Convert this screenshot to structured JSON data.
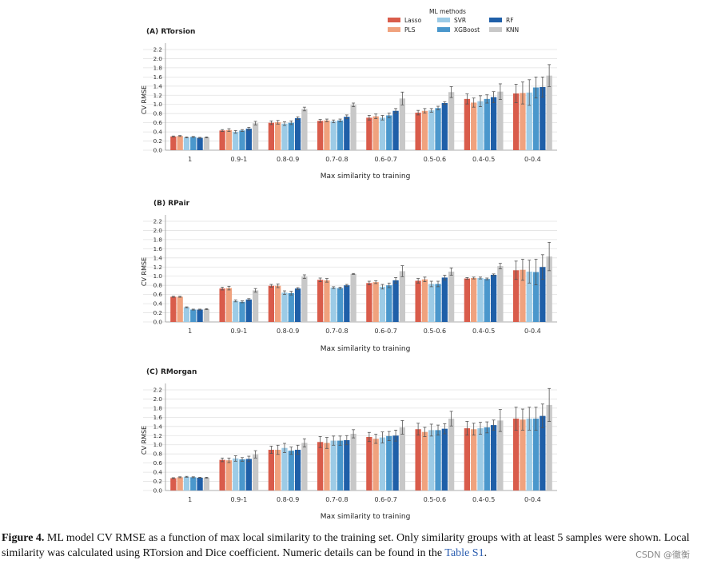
{
  "legend": {
    "title": "ML methods",
    "entries": [
      {
        "name": "Lasso",
        "color": "#d95c4b"
      },
      {
        "name": "PLS",
        "color": "#f0a27e"
      },
      {
        "name": "SVR",
        "color": "#9ccbe6"
      },
      {
        "name": "XGBoost",
        "color": "#4a97cc"
      },
      {
        "name": "RF",
        "color": "#1f5fa8"
      },
      {
        "name": "KNN",
        "color": "#c8c8c8"
      }
    ]
  },
  "chart_data": [
    {
      "type": "bar",
      "title": "(A) RTorsion",
      "xlabel": "Max similarity to training",
      "ylabel": "CV RMSE",
      "ylim": [
        0,
        2.2
      ],
      "yticks": [
        "0.0",
        "0.2",
        "0.4",
        "0.6",
        "0.8",
        "1.0",
        "1.2",
        "1.4",
        "1.6",
        "1.8",
        "2.0",
        "2.2"
      ],
      "categories": [
        "1",
        "0.9-1",
        "0.8-0.9",
        "0.7-0.8",
        "0.6-0.7",
        "0.5-0.6",
        "0.4-0.5",
        "0-0.4"
      ],
      "series": [
        {
          "name": "Lasso",
          "values": [
            0.3,
            0.43,
            0.6,
            0.64,
            0.71,
            0.82,
            1.12,
            1.24
          ],
          "errors": [
            0.01,
            0.02,
            0.04,
            0.03,
            0.05,
            0.05,
            0.11,
            0.2
          ]
        },
        {
          "name": "PLS",
          "values": [
            0.31,
            0.44,
            0.61,
            0.65,
            0.74,
            0.86,
            1.04,
            1.25
          ],
          "errors": [
            0.01,
            0.03,
            0.04,
            0.03,
            0.05,
            0.05,
            0.1,
            0.24
          ]
        },
        {
          "name": "SVR",
          "values": [
            0.28,
            0.4,
            0.58,
            0.63,
            0.71,
            0.87,
            1.07,
            1.26
          ],
          "errors": [
            0.01,
            0.03,
            0.04,
            0.03,
            0.05,
            0.04,
            0.12,
            0.28
          ]
        },
        {
          "name": "XGBoost",
          "values": [
            0.29,
            0.43,
            0.6,
            0.65,
            0.76,
            0.92,
            1.12,
            1.37
          ],
          "errors": [
            0.01,
            0.02,
            0.04,
            0.03,
            0.05,
            0.04,
            0.09,
            0.23
          ]
        },
        {
          "name": "RF",
          "values": [
            0.27,
            0.47,
            0.7,
            0.73,
            0.86,
            1.03,
            1.16,
            1.38
          ],
          "errors": [
            0.01,
            0.03,
            0.03,
            0.04,
            0.05,
            0.03,
            0.12,
            0.22
          ]
        },
        {
          "name": "KNN",
          "values": [
            0.28,
            0.59,
            0.9,
            0.99,
            1.13,
            1.27,
            1.28,
            1.63
          ],
          "errors": [
            0.01,
            0.04,
            0.04,
            0.04,
            0.14,
            0.12,
            0.17,
            0.24
          ]
        }
      ]
    },
    {
      "type": "bar",
      "title": "(B) RPair",
      "xlabel": "Max similarity to training",
      "ylabel": "CV RMSE",
      "ylim": [
        0,
        2.2
      ],
      "yticks": [
        "0.0",
        "0.2",
        "0.4",
        "0.6",
        "0.8",
        "1.0",
        "1.2",
        "1.4",
        "1.6",
        "1.8",
        "2.0",
        "2.2"
      ],
      "categories": [
        "1",
        "0.9-1",
        "0.8-0.9",
        "0.7-0.8",
        "0.6-0.7",
        "0.5-0.6",
        "0.4-0.5",
        "0-0.4"
      ],
      "series": [
        {
          "name": "Lasso",
          "values": [
            0.55,
            0.73,
            0.79,
            0.92,
            0.85,
            0.9,
            0.95,
            1.13
          ],
          "errors": [
            0.01,
            0.03,
            0.03,
            0.04,
            0.04,
            0.05,
            0.02,
            0.2
          ]
        },
        {
          "name": "PLS",
          "values": [
            0.55,
            0.74,
            0.79,
            0.91,
            0.87,
            0.93,
            0.96,
            1.14
          ],
          "errors": [
            0.01,
            0.04,
            0.04,
            0.04,
            0.03,
            0.05,
            0.02,
            0.23
          ]
        },
        {
          "name": "SVR",
          "values": [
            0.32,
            0.46,
            0.64,
            0.75,
            0.77,
            0.83,
            0.96,
            1.1
          ],
          "errors": [
            0.01,
            0.02,
            0.04,
            0.02,
            0.05,
            0.06,
            0.02,
            0.25
          ]
        },
        {
          "name": "XGBoost",
          "values": [
            0.27,
            0.44,
            0.63,
            0.74,
            0.8,
            0.83,
            0.94,
            1.09
          ],
          "errors": [
            0.01,
            0.02,
            0.04,
            0.02,
            0.05,
            0.06,
            0.02,
            0.28
          ]
        },
        {
          "name": "RF",
          "values": [
            0.27,
            0.49,
            0.73,
            0.8,
            0.91,
            0.97,
            1.03,
            1.2
          ],
          "errors": [
            0.01,
            0.02,
            0.02,
            0.02,
            0.06,
            0.05,
            0.02,
            0.27
          ]
        },
        {
          "name": "KNN",
          "values": [
            0.28,
            0.69,
            0.99,
            1.05,
            1.11,
            1.1,
            1.22,
            1.43
          ],
          "errors": [
            0.01,
            0.04,
            0.04,
            0.01,
            0.12,
            0.08,
            0.06,
            0.31
          ]
        }
      ]
    },
    {
      "type": "bar",
      "title": "(C) RMorgan",
      "xlabel": "Max similarity to training",
      "ylabel": "CV RMSE",
      "ylim": [
        0,
        2.2
      ],
      "yticks": [
        "0.0",
        "0.2",
        "0.4",
        "0.6",
        "0.8",
        "1.0",
        "1.2",
        "1.4",
        "1.6",
        "1.8",
        "2.0",
        "2.2"
      ],
      "categories": [
        "1",
        "0.9-1",
        "0.8-0.9",
        "0.7-0.8",
        "0.6-0.7",
        "0.5-0.6",
        "0.4-0.5",
        "0-0.4"
      ],
      "series": [
        {
          "name": "Lasso",
          "values": [
            0.27,
            0.67,
            0.89,
            1.06,
            1.17,
            1.34,
            1.36,
            1.57
          ],
          "errors": [
            0.01,
            0.04,
            0.08,
            0.12,
            0.1,
            0.13,
            0.15,
            0.25
          ]
        },
        {
          "name": "PLS",
          "values": [
            0.29,
            0.66,
            0.89,
            1.04,
            1.13,
            1.28,
            1.34,
            1.55
          ],
          "errors": [
            0.01,
            0.05,
            0.1,
            0.12,
            0.1,
            0.1,
            0.13,
            0.23
          ]
        },
        {
          "name": "SVR",
          "values": [
            0.3,
            0.7,
            0.93,
            1.09,
            1.16,
            1.32,
            1.36,
            1.57
          ],
          "errors": [
            0.01,
            0.06,
            0.1,
            0.1,
            0.12,
            0.13,
            0.13,
            0.25
          ]
        },
        {
          "name": "XGBoost",
          "values": [
            0.29,
            0.68,
            0.87,
            1.09,
            1.19,
            1.32,
            1.38,
            1.57
          ],
          "errors": [
            0.01,
            0.04,
            0.08,
            0.1,
            0.1,
            0.11,
            0.12,
            0.25
          ]
        },
        {
          "name": "RF",
          "values": [
            0.28,
            0.69,
            0.89,
            1.1,
            1.2,
            1.35,
            1.43,
            1.63
          ],
          "errors": [
            0.01,
            0.06,
            0.1,
            0.1,
            0.12,
            0.11,
            0.11,
            0.26
          ]
        },
        {
          "name": "KNN",
          "values": [
            0.28,
            0.79,
            1.04,
            1.24,
            1.38,
            1.57,
            1.53,
            1.87
          ],
          "errors": [
            0.01,
            0.08,
            0.09,
            0.09,
            0.15,
            0.16,
            0.24,
            0.36
          ]
        }
      ]
    }
  ],
  "caption": {
    "label": "Figure 4.",
    "text": " ML model CV RMSE as a function of max local similarity to the training set. Only similarity groups with at least 5 samples were shown. Local similarity was calculated using RTorsion and Dice coefficient. Numeric details can be found in the ",
    "link": "Table S1",
    "end": "."
  },
  "watermark": "CSDN @徹衡"
}
